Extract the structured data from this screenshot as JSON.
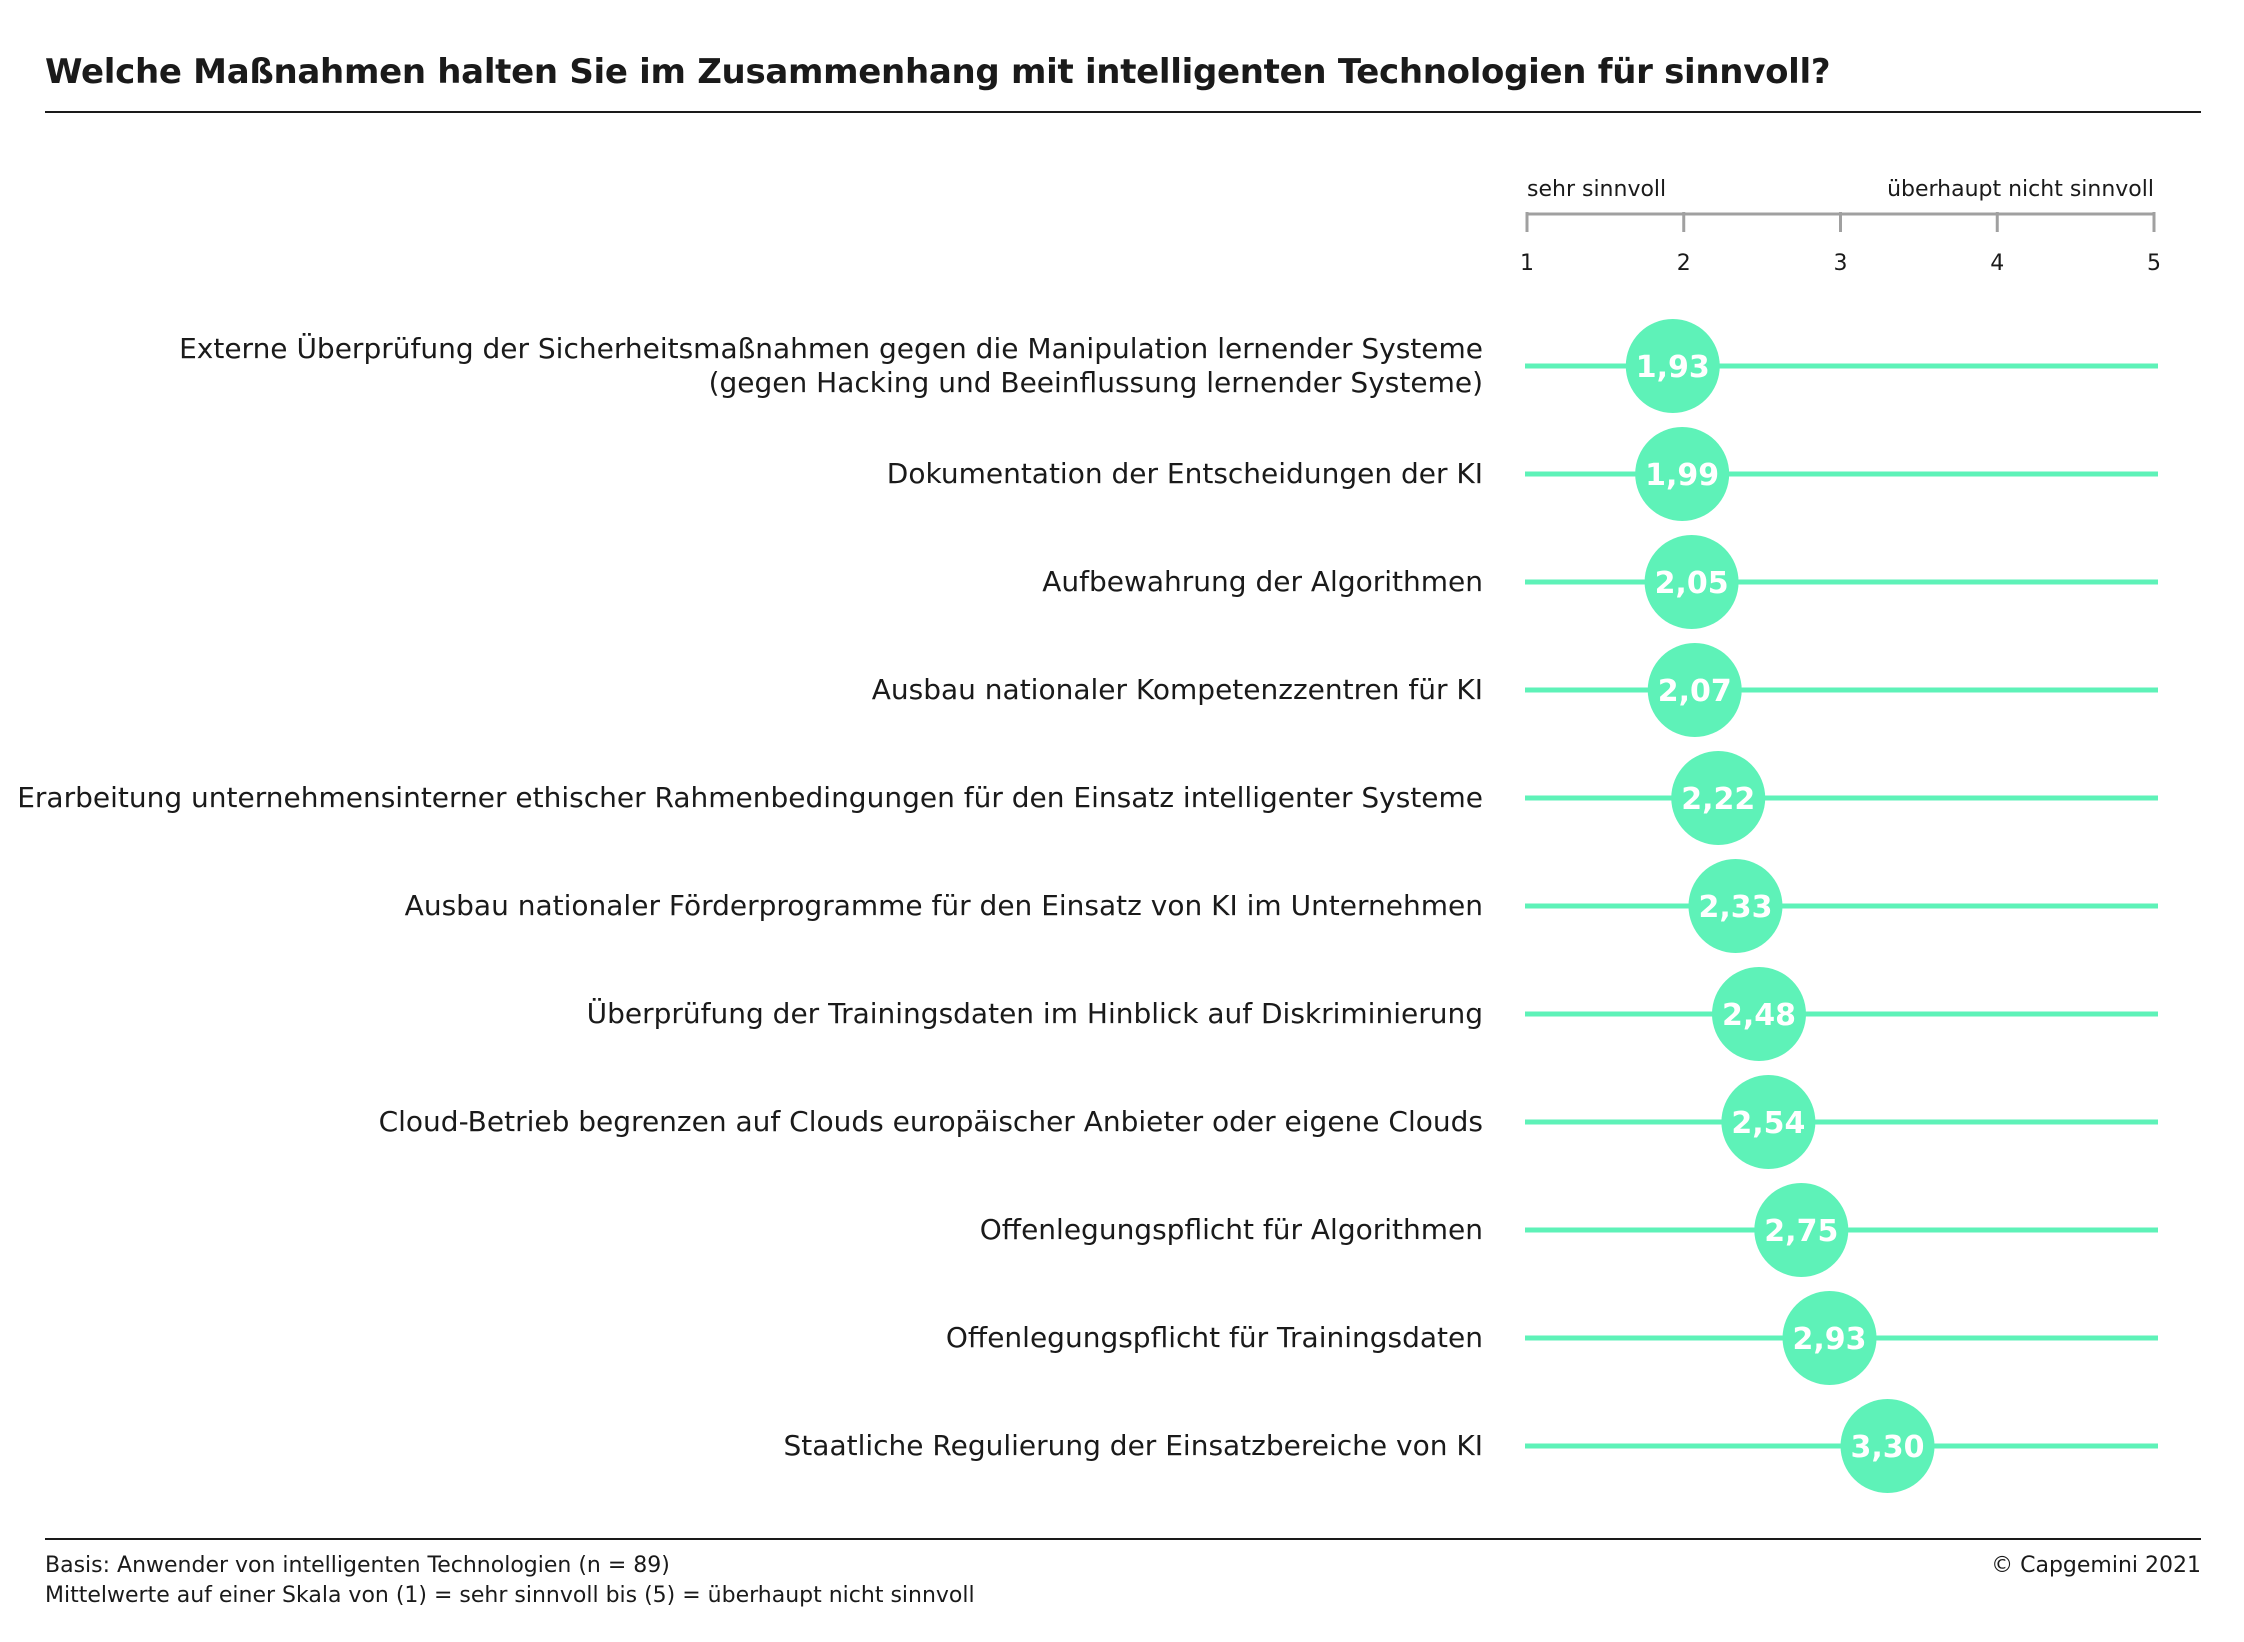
{
  "title": "Welche Maßnahmen halten Sie im Zusammenhang mit intelligenten Technologien für sinnvoll?",
  "colors": {
    "accent": "#5ef2b8",
    "text": "#1a1a1a",
    "axis": "#a0a0a0",
    "value_text": "#ffffff"
  },
  "chart_data": {
    "type": "dot",
    "scale_left_label": "sehr sinnvoll",
    "scale_right_label": "überhaupt nicht sinnvoll",
    "ticks": [
      "1",
      "2",
      "3",
      "4",
      "5"
    ],
    "xlim": [
      1,
      5
    ],
    "categories": [
      [
        "Externe Überprüfung der Sicherheitsmaßnahmen gegen die Manipulation lernender Systeme",
        "(gegen Hacking und Beeinflussung lernender Systeme)"
      ],
      [
        "Dokumentation der Entscheidungen der KI"
      ],
      [
        "Aufbewahrung der Algorithmen"
      ],
      [
        "Ausbau nationaler Kompetenzzentren für KI"
      ],
      [
        "Erarbeitung unternehmensinterner ethischer Rahmenbedingungen für den Einsatz intelligenter Systeme"
      ],
      [
        "Ausbau nationaler Förderprogramme für den Einsatz von KI im Unternehmen"
      ],
      [
        "Überprüfung der Trainingsdaten im Hinblick auf Diskriminierung"
      ],
      [
        "Cloud-Betrieb begrenzen auf Clouds europäischer Anbieter oder eigene Clouds"
      ],
      [
        "Offenlegungspflicht für Algorithmen"
      ],
      [
        "Offenlegungspflicht für Trainingsdaten"
      ],
      [
        "Staatliche Regulierung der Einsatzbereiche von KI"
      ]
    ],
    "values": [
      1.93,
      1.99,
      2.05,
      2.07,
      2.22,
      2.33,
      2.48,
      2.54,
      2.75,
      2.93,
      3.3
    ],
    "value_labels": [
      "1,93",
      "1,99",
      "2,05",
      "2,07",
      "2,22",
      "2,33",
      "2,48",
      "2,54",
      "2,75",
      "2,93",
      "3,30"
    ]
  },
  "footer": {
    "basis": "Basis: Anwender von intelligenten Technologien (n = 89)",
    "scale_note": "Mittelwerte auf einer Skala von (1) = sehr sinnvoll bis (5) = überhaupt nicht sinnvoll",
    "copyright": "© Capgemini 2021"
  }
}
